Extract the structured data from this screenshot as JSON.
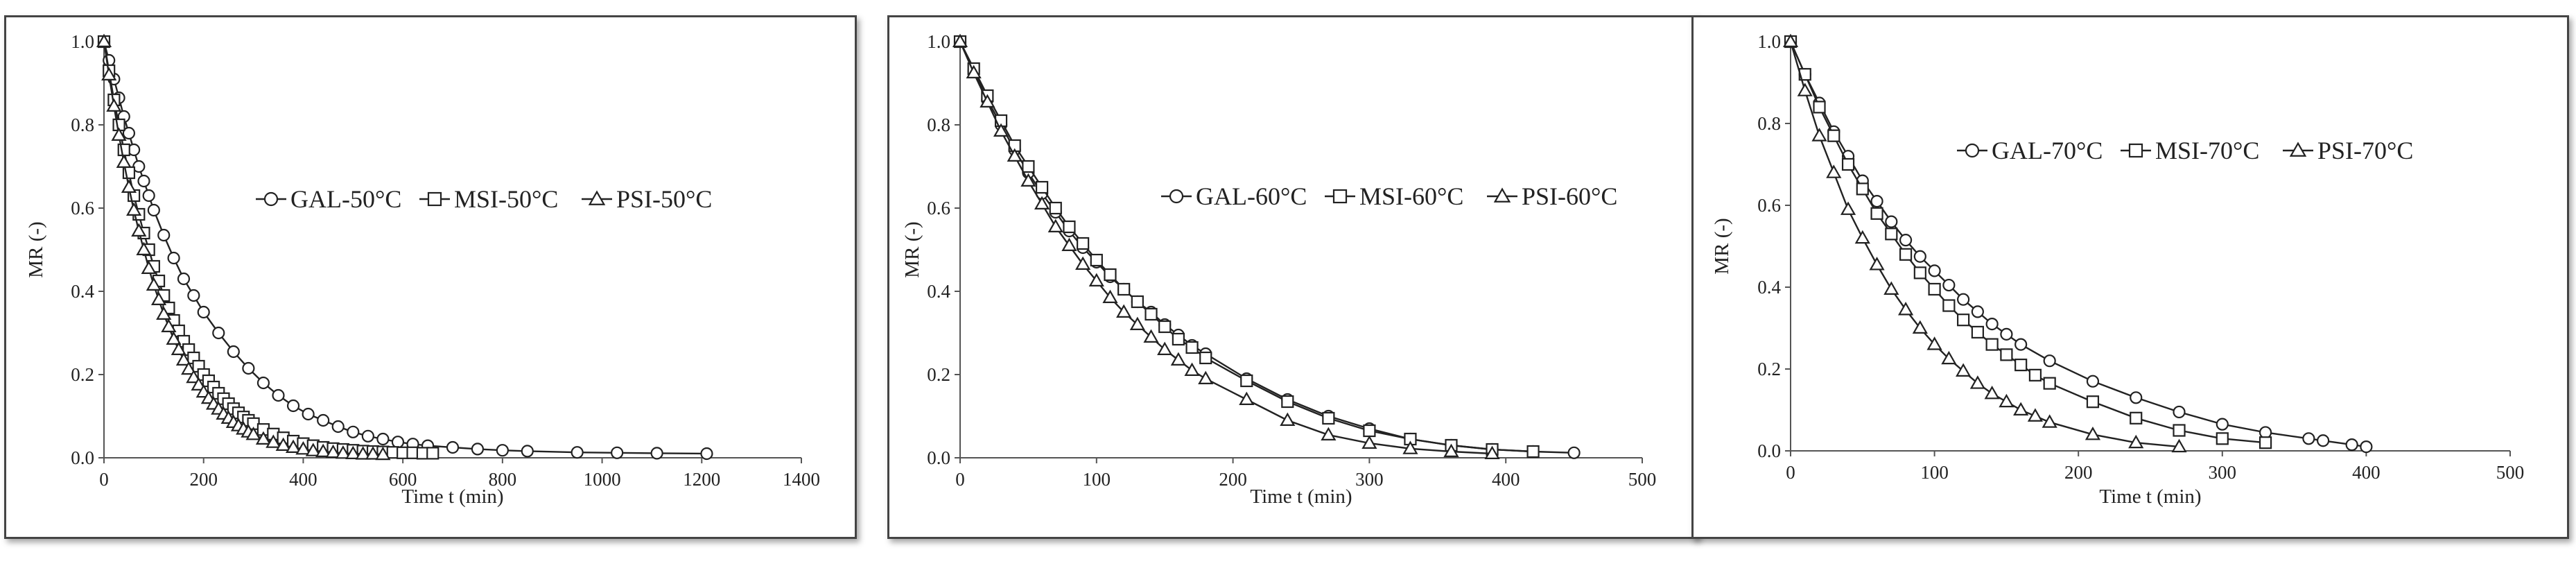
{
  "chart_data": [
    {
      "type": "scatter",
      "title": "",
      "xlabel": "Time t (min)",
      "ylabel": "MR (-)",
      "xlim": [
        0,
        1400
      ],
      "ylim": [
        0,
        1.0
      ],
      "xticks": [
        0,
        200,
        400,
        600,
        800,
        1000,
        1200,
        1400
      ],
      "yticks": [
        0.0,
        0.2,
        0.4,
        0.6,
        0.8,
        1.0
      ],
      "grid": false,
      "legend_position": "center-right",
      "series": [
        {
          "name": "GAL-50°C",
          "marker": "circle",
          "x": [
            0,
            10,
            20,
            30,
            40,
            50,
            60,
            70,
            80,
            90,
            100,
            120,
            140,
            160,
            180,
            200,
            230,
            260,
            290,
            320,
            350,
            380,
            410,
            440,
            470,
            500,
            530,
            560,
            590,
            620,
            650,
            700,
            750,
            800,
            850,
            950,
            1030,
            1110,
            1210
          ],
          "y": [
            1.0,
            0.955,
            0.91,
            0.865,
            0.82,
            0.78,
            0.74,
            0.7,
            0.665,
            0.63,
            0.595,
            0.535,
            0.48,
            0.43,
            0.39,
            0.35,
            0.3,
            0.255,
            0.215,
            0.18,
            0.15,
            0.125,
            0.105,
            0.09,
            0.075,
            0.062,
            0.052,
            0.045,
            0.038,
            0.033,
            0.029,
            0.025,
            0.021,
            0.018,
            0.016,
            0.013,
            0.012,
            0.011,
            0.01
          ]
        },
        {
          "name": "MSI-50°C",
          "marker": "square",
          "x": [
            0,
            10,
            20,
            30,
            40,
            50,
            60,
            70,
            80,
            90,
            100,
            110,
            120,
            130,
            140,
            150,
            160,
            170,
            180,
            190,
            200,
            210,
            220,
            230,
            240,
            250,
            260,
            270,
            280,
            290,
            300,
            320,
            340,
            360,
            380,
            400,
            420,
            440,
            460,
            480,
            500,
            520,
            540,
            560,
            580,
            600,
            620,
            640,
            660
          ],
          "y": [
            1.0,
            0.93,
            0.86,
            0.8,
            0.74,
            0.685,
            0.63,
            0.585,
            0.54,
            0.5,
            0.46,
            0.425,
            0.39,
            0.36,
            0.33,
            0.305,
            0.28,
            0.26,
            0.24,
            0.22,
            0.2,
            0.185,
            0.17,
            0.155,
            0.142,
            0.13,
            0.118,
            0.108,
            0.098,
            0.09,
            0.082,
            0.068,
            0.057,
            0.048,
            0.04,
            0.034,
            0.029,
            0.025,
            0.022,
            0.02,
            0.018,
            0.016,
            0.015,
            0.014,
            0.013,
            0.012,
            0.012,
            0.011,
            0.011
          ]
        },
        {
          "name": "PSI-50°C",
          "marker": "triangle",
          "x": [
            0,
            10,
            20,
            30,
            40,
            50,
            60,
            70,
            80,
            90,
            100,
            110,
            120,
            130,
            140,
            150,
            160,
            170,
            180,
            190,
            200,
            210,
            220,
            230,
            240,
            250,
            260,
            270,
            280,
            290,
            300,
            320,
            340,
            360,
            380,
            400,
            420,
            440,
            460,
            480,
            500,
            520,
            540,
            560
          ],
          "y": [
            1.0,
            0.92,
            0.845,
            0.775,
            0.71,
            0.65,
            0.595,
            0.545,
            0.5,
            0.455,
            0.415,
            0.38,
            0.345,
            0.315,
            0.285,
            0.26,
            0.235,
            0.213,
            0.193,
            0.175,
            0.158,
            0.143,
            0.129,
            0.117,
            0.105,
            0.095,
            0.085,
            0.077,
            0.069,
            0.062,
            0.056,
            0.045,
            0.037,
            0.03,
            0.025,
            0.021,
            0.017,
            0.015,
            0.013,
            0.011,
            0.01,
            0.009,
            0.009,
            0.008
          ]
        }
      ]
    },
    {
      "type": "scatter",
      "title": "",
      "xlabel": "Time t (min)",
      "ylabel": "MR (-)",
      "xlim": [
        0,
        500
      ],
      "ylim": [
        0,
        1.0
      ],
      "xticks": [
        0,
        100,
        200,
        300,
        400,
        500
      ],
      "yticks": [
        0.0,
        0.2,
        0.4,
        0.6,
        0.8,
        1.0
      ],
      "grid": false,
      "legend_position": "top-right",
      "series": [
        {
          "name": "GAL-60°C",
          "marker": "circle",
          "x": [
            0,
            10,
            20,
            30,
            40,
            50,
            60,
            70,
            80,
            90,
            100,
            110,
            120,
            130,
            140,
            150,
            160,
            170,
            180,
            210,
            240,
            270,
            300,
            330,
            360,
            390,
            420,
            450
          ],
          "y": [
            1.0,
            0.93,
            0.86,
            0.8,
            0.74,
            0.685,
            0.635,
            0.59,
            0.545,
            0.505,
            0.47,
            0.435,
            0.405,
            0.375,
            0.35,
            0.32,
            0.295,
            0.27,
            0.25,
            0.19,
            0.14,
            0.1,
            0.07,
            0.045,
            0.03,
            0.02,
            0.015,
            0.012
          ]
        },
        {
          "name": "MSI-60°C",
          "marker": "square",
          "x": [
            0,
            10,
            20,
            30,
            40,
            50,
            60,
            70,
            80,
            90,
            100,
            110,
            120,
            130,
            140,
            150,
            160,
            170,
            180,
            210,
            240,
            270,
            300,
            330,
            360,
            390,
            420
          ],
          "y": [
            1.0,
            0.935,
            0.87,
            0.81,
            0.75,
            0.7,
            0.65,
            0.6,
            0.555,
            0.515,
            0.475,
            0.44,
            0.405,
            0.375,
            0.345,
            0.315,
            0.285,
            0.265,
            0.24,
            0.185,
            0.135,
            0.095,
            0.065,
            0.045,
            0.03,
            0.02,
            0.015
          ]
        },
        {
          "name": "PSI-60°C",
          "marker": "triangle",
          "x": [
            0,
            10,
            20,
            30,
            40,
            50,
            60,
            70,
            80,
            90,
            100,
            110,
            120,
            130,
            140,
            150,
            160,
            170,
            180,
            210,
            240,
            270,
            300,
            330,
            360,
            390
          ],
          "y": [
            1.0,
            0.925,
            0.855,
            0.785,
            0.725,
            0.665,
            0.61,
            0.555,
            0.51,
            0.465,
            0.425,
            0.385,
            0.35,
            0.32,
            0.29,
            0.26,
            0.235,
            0.21,
            0.19,
            0.14,
            0.09,
            0.055,
            0.035,
            0.022,
            0.015,
            0.01
          ]
        }
      ]
    },
    {
      "type": "scatter",
      "title": "",
      "xlabel": "Time t (min)",
      "ylabel": "MR (-)",
      "xlim": [
        0,
        500
      ],
      "ylim": [
        0,
        1.0
      ],
      "xticks": [
        0,
        100,
        200,
        300,
        400,
        500
      ],
      "yticks": [
        0.0,
        0.2,
        0.4,
        0.6,
        0.8,
        1.0
      ],
      "grid": false,
      "legend_position": "top-right",
      "series": [
        {
          "name": "GAL-70°C",
          "marker": "circle",
          "x": [
            0,
            10,
            20,
            30,
            40,
            50,
            60,
            70,
            80,
            90,
            100,
            110,
            120,
            130,
            140,
            150,
            160,
            180,
            210,
            240,
            270,
            300,
            330,
            360,
            370,
            390,
            400
          ],
          "y": [
            1.0,
            0.92,
            0.85,
            0.78,
            0.72,
            0.66,
            0.61,
            0.56,
            0.515,
            0.475,
            0.44,
            0.405,
            0.37,
            0.34,
            0.31,
            0.285,
            0.26,
            0.22,
            0.17,
            0.13,
            0.095,
            0.065,
            0.045,
            0.03,
            0.025,
            0.015,
            0.01
          ]
        },
        {
          "name": "MSI-70°C",
          "marker": "square",
          "x": [
            0,
            10,
            20,
            30,
            40,
            50,
            60,
            70,
            80,
            90,
            100,
            110,
            120,
            130,
            140,
            150,
            160,
            170,
            180,
            210,
            240,
            270,
            300,
            330
          ],
          "y": [
            1.0,
            0.92,
            0.84,
            0.77,
            0.7,
            0.64,
            0.58,
            0.53,
            0.48,
            0.435,
            0.395,
            0.355,
            0.32,
            0.29,
            0.26,
            0.235,
            0.21,
            0.185,
            0.165,
            0.12,
            0.08,
            0.05,
            0.03,
            0.02
          ]
        },
        {
          "name": "PSI-70°C",
          "marker": "triangle",
          "x": [
            0,
            10,
            20,
            30,
            40,
            50,
            60,
            70,
            80,
            90,
            100,
            110,
            120,
            130,
            140,
            150,
            160,
            170,
            180,
            210,
            240,
            270
          ],
          "y": [
            1.0,
            0.88,
            0.77,
            0.68,
            0.59,
            0.52,
            0.455,
            0.395,
            0.345,
            0.3,
            0.26,
            0.225,
            0.195,
            0.165,
            0.14,
            0.12,
            0.1,
            0.085,
            0.07,
            0.04,
            0.02,
            0.01
          ]
        }
      ]
    }
  ]
}
